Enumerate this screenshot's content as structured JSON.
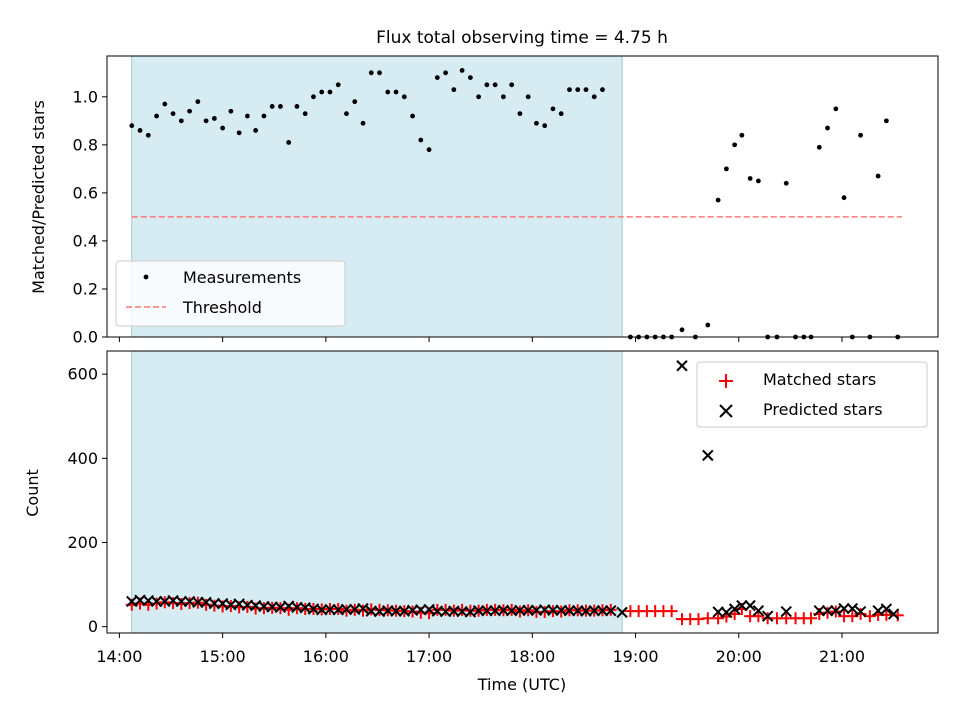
{
  "title": "Flux total observing time = 4.75 h",
  "chart_data": [
    {
      "type": "scatter",
      "name": "ratio",
      "ylabel": "Matched/Predicted stars",
      "xlim": [
        13.88,
        21.93
      ],
      "ylim": [
        0,
        1.17
      ],
      "yticks": [
        0,
        0.2,
        0.4,
        0.6,
        0.8,
        1.0
      ],
      "ytick_labels": [
        "0.0",
        "0.2",
        "0.4",
        "0.6",
        "0.8",
        "1.0"
      ],
      "shaded_interval": [
        14.12,
        18.87
      ],
      "threshold": {
        "label": "Threshold",
        "value": 0.5,
        "x_range": [
          14.12,
          21.58
        ],
        "color": "#ff7777"
      },
      "measurements": {
        "label": "Measurements",
        "color": "#000000",
        "points": [
          [
            14.12,
            0.88
          ],
          [
            14.2,
            0.86
          ],
          [
            14.28,
            0.84
          ],
          [
            14.36,
            0.92
          ],
          [
            14.44,
            0.97
          ],
          [
            14.52,
            0.93
          ],
          [
            14.6,
            0.9
          ],
          [
            14.68,
            0.94
          ],
          [
            14.76,
            0.98
          ],
          [
            14.84,
            0.9
          ],
          [
            14.92,
            0.91
          ],
          [
            15.0,
            0.87
          ],
          [
            15.08,
            0.94
          ],
          [
            15.16,
            0.85
          ],
          [
            15.24,
            0.92
          ],
          [
            15.32,
            0.86
          ],
          [
            15.4,
            0.92
          ],
          [
            15.48,
            0.96
          ],
          [
            15.56,
            0.96
          ],
          [
            15.64,
            0.81
          ],
          [
            15.72,
            0.96
          ],
          [
            15.8,
            0.93
          ],
          [
            15.88,
            1.0
          ],
          [
            15.96,
            1.02
          ],
          [
            16.04,
            1.02
          ],
          [
            16.12,
            1.05
          ],
          [
            16.2,
            0.93
          ],
          [
            16.28,
            0.98
          ],
          [
            16.36,
            0.89
          ],
          [
            16.44,
            1.1
          ],
          [
            16.52,
            1.1
          ],
          [
            16.6,
            1.02
          ],
          [
            16.68,
            1.02
          ],
          [
            16.76,
            1.0
          ],
          [
            16.84,
            0.92
          ],
          [
            16.92,
            0.82
          ],
          [
            17.0,
            0.78
          ],
          [
            17.08,
            1.08
          ],
          [
            17.16,
            1.1
          ],
          [
            17.24,
            1.03
          ],
          [
            17.32,
            1.11
          ],
          [
            17.4,
            1.08
          ],
          [
            17.48,
            1.0
          ],
          [
            17.56,
            1.05
          ],
          [
            17.64,
            1.05
          ],
          [
            17.72,
            1.0
          ],
          [
            17.8,
            1.05
          ],
          [
            17.88,
            0.93
          ],
          [
            17.96,
            1.0
          ],
          [
            18.04,
            0.89
          ],
          [
            18.12,
            0.88
          ],
          [
            18.2,
            0.95
          ],
          [
            18.28,
            0.93
          ],
          [
            18.36,
            1.03
          ],
          [
            18.44,
            1.03
          ],
          [
            18.52,
            1.03
          ],
          [
            18.6,
            1.0
          ],
          [
            18.68,
            1.03
          ],
          [
            18.95,
            0.0
          ],
          [
            19.03,
            0.0
          ],
          [
            19.11,
            0.0
          ],
          [
            19.19,
            0.0
          ],
          [
            19.27,
            0.0
          ],
          [
            19.35,
            0.0
          ],
          [
            19.45,
            0.03
          ],
          [
            19.58,
            0.0
          ],
          [
            19.7,
            0.05
          ],
          [
            19.8,
            0.57
          ],
          [
            19.88,
            0.7
          ],
          [
            19.96,
            0.8
          ],
          [
            20.03,
            0.84
          ],
          [
            20.11,
            0.66
          ],
          [
            20.19,
            0.65
          ],
          [
            20.28,
            0.0
          ],
          [
            20.37,
            0.0
          ],
          [
            20.46,
            0.64
          ],
          [
            20.55,
            0.0
          ],
          [
            20.63,
            0.0
          ],
          [
            20.7,
            0.0
          ],
          [
            20.78,
            0.79
          ],
          [
            20.86,
            0.87
          ],
          [
            20.94,
            0.95
          ],
          [
            21.02,
            0.58
          ],
          [
            21.1,
            0.0
          ],
          [
            21.18,
            0.84
          ],
          [
            21.27,
            0.0
          ],
          [
            21.35,
            0.67
          ],
          [
            21.43,
            0.9
          ],
          [
            21.54,
            0.0
          ]
        ]
      }
    },
    {
      "type": "scatter",
      "name": "counts",
      "xlabel": "Time (UTC)",
      "ylabel": "Count",
      "xlim": [
        13.88,
        21.93
      ],
      "ylim": [
        -15,
        655
      ],
      "yticks": [
        0,
        200,
        400,
        600
      ],
      "ytick_labels": [
        "0",
        "200",
        "400",
        "600"
      ],
      "xticks": [
        14,
        15,
        16,
        17,
        18,
        19,
        20,
        21
      ],
      "xtick_labels": [
        "14:00",
        "15:00",
        "16:00",
        "17:00",
        "18:00",
        "19:00",
        "20:00",
        "21:00"
      ],
      "shaded_interval": [
        14.12,
        18.87
      ],
      "series": [
        {
          "name": "Matched stars",
          "marker": "+",
          "color": "#ff0000",
          "points": [
            [
              14.12,
              52
            ],
            [
              14.2,
              55
            ],
            [
              14.28,
              52
            ],
            [
              14.36,
              55
            ],
            [
              14.44,
              58
            ],
            [
              14.52,
              56
            ],
            [
              14.6,
              54
            ],
            [
              14.68,
              56
            ],
            [
              14.76,
              57
            ],
            [
              14.84,
              52
            ],
            [
              14.92,
              50
            ],
            [
              15.0,
              48
            ],
            [
              15.08,
              49
            ],
            [
              15.16,
              46
            ],
            [
              15.24,
              47
            ],
            [
              15.32,
              43
            ],
            [
              15.4,
              44
            ],
            [
              15.48,
              45
            ],
            [
              15.56,
              44
            ],
            [
              15.64,
              40
            ],
            [
              15.72,
              44
            ],
            [
              15.8,
              42
            ],
            [
              15.88,
              42
            ],
            [
              15.96,
              41
            ],
            [
              16.04,
              42
            ],
            [
              16.12,
              42
            ],
            [
              16.2,
              38
            ],
            [
              16.28,
              40
            ],
            [
              16.36,
              38
            ],
            [
              16.44,
              41
            ],
            [
              16.52,
              40
            ],
            [
              16.6,
              39
            ],
            [
              16.68,
              38
            ],
            [
              16.76,
              37
            ],
            [
              16.84,
              36
            ],
            [
              16.92,
              33
            ],
            [
              17.0,
              32
            ],
            [
              17.08,
              40
            ],
            [
              17.16,
              40
            ],
            [
              17.24,
              38
            ],
            [
              17.32,
              40
            ],
            [
              17.4,
              38
            ],
            [
              17.48,
              38
            ],
            [
              17.56,
              40
            ],
            [
              17.64,
              40
            ],
            [
              17.72,
              39
            ],
            [
              17.8,
              40
            ],
            [
              17.88,
              36
            ],
            [
              17.96,
              39
            ],
            [
              18.04,
              35
            ],
            [
              18.12,
              35
            ],
            [
              18.2,
              37
            ],
            [
              18.28,
              36
            ],
            [
              18.36,
              39
            ],
            [
              18.44,
              39
            ],
            [
              18.52,
              38
            ],
            [
              18.6,
              38
            ],
            [
              18.68,
              39
            ],
            [
              18.76,
              40
            ],
            [
              18.95,
              37
            ],
            [
              19.03,
              37
            ],
            [
              19.11,
              37
            ],
            [
              19.19,
              37
            ],
            [
              19.27,
              37
            ],
            [
              19.35,
              37
            ],
            [
              19.45,
              18
            ],
            [
              19.53,
              18
            ],
            [
              19.61,
              18
            ],
            [
              19.7,
              20
            ],
            [
              19.8,
              20
            ],
            [
              19.88,
              24
            ],
            [
              19.96,
              30
            ],
            [
              20.03,
              42
            ],
            [
              20.11,
              25
            ],
            [
              20.19,
              25
            ],
            [
              20.28,
              20
            ],
            [
              20.37,
              20
            ],
            [
              20.46,
              20
            ],
            [
              20.55,
              20
            ],
            [
              20.63,
              20
            ],
            [
              20.7,
              20
            ],
            [
              20.78,
              30
            ],
            [
              20.86,
              33
            ],
            [
              20.94,
              36
            ],
            [
              21.02,
              25
            ],
            [
              21.1,
              25
            ],
            [
              21.18,
              30
            ],
            [
              21.27,
              25
            ],
            [
              21.35,
              28
            ],
            [
              21.43,
              28
            ],
            [
              21.54,
              27
            ]
          ]
        },
        {
          "name": "Predicted stars",
          "marker": "x",
          "color": "#000000",
          "points": [
            [
              14.12,
              60
            ],
            [
              14.2,
              63
            ],
            [
              14.28,
              62
            ],
            [
              14.36,
              60
            ],
            [
              14.44,
              60
            ],
            [
              14.52,
              62
            ],
            [
              14.6,
              60
            ],
            [
              14.68,
              60
            ],
            [
              14.76,
              58
            ],
            [
              14.84,
              58
            ],
            [
              14.92,
              55
            ],
            [
              15.0,
              55
            ],
            [
              15.08,
              52
            ],
            [
              15.16,
              54
            ],
            [
              15.24,
              51
            ],
            [
              15.32,
              50
            ],
            [
              15.4,
              48
            ],
            [
              15.48,
              47
            ],
            [
              15.56,
              46
            ],
            [
              15.64,
              49
            ],
            [
              15.72,
              46
            ],
            [
              15.8,
              45
            ],
            [
              15.88,
              42
            ],
            [
              15.96,
              40
            ],
            [
              16.04,
              41
            ],
            [
              16.12,
              40
            ],
            [
              16.2,
              41
            ],
            [
              16.28,
              41
            ],
            [
              16.36,
              43
            ],
            [
              16.44,
              37
            ],
            [
              16.52,
              36
            ],
            [
              16.6,
              38
            ],
            [
              16.68,
              37
            ],
            [
              16.76,
              37
            ],
            [
              16.84,
              39
            ],
            [
              16.92,
              40
            ],
            [
              17.0,
              41
            ],
            [
              17.08,
              37
            ],
            [
              17.16,
              36
            ],
            [
              17.24,
              37
            ],
            [
              17.32,
              36
            ],
            [
              17.4,
              35
            ],
            [
              17.48,
              38
            ],
            [
              17.56,
              38
            ],
            [
              17.64,
              38
            ],
            [
              17.72,
              39
            ],
            [
              17.8,
              38
            ],
            [
              17.88,
              39
            ],
            [
              17.96,
              39
            ],
            [
              18.04,
              39
            ],
            [
              18.12,
              40
            ],
            [
              18.2,
              39
            ],
            [
              18.28,
              39
            ],
            [
              18.36,
              38
            ],
            [
              18.44,
              38
            ],
            [
              18.52,
              37
            ],
            [
              18.6,
              38
            ],
            [
              18.68,
              38
            ],
            [
              18.76,
              38
            ],
            [
              18.87,
              34
            ],
            [
              19.45,
              620
            ],
            [
              19.7,
              407
            ],
            [
              19.8,
              35
            ],
            [
              19.88,
              34
            ],
            [
              19.96,
              42
            ],
            [
              20.03,
              50
            ],
            [
              20.11,
              50
            ],
            [
              20.19,
              38
            ],
            [
              20.28,
              25
            ],
            [
              20.46,
              36
            ],
            [
              20.78,
              38
            ],
            [
              20.86,
              38
            ],
            [
              20.94,
              38
            ],
            [
              21.02,
              43
            ],
            [
              21.1,
              43
            ],
            [
              21.18,
              36
            ],
            [
              21.35,
              38
            ],
            [
              21.43,
              42
            ],
            [
              21.5,
              30
            ]
          ]
        }
      ]
    }
  ]
}
